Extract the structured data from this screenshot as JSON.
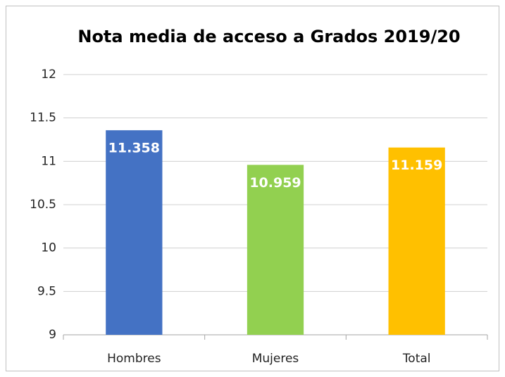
{
  "chart_data": {
    "type": "bar",
    "title": "Nota media de acceso a Grados 2019/20",
    "categories": [
      "Hombres",
      "Mujeres",
      "Total"
    ],
    "values": [
      11.358,
      10.959,
      11.159
    ],
    "colors": [
      "#4472c4",
      "#92d050",
      "#ffc000"
    ],
    "ylim": [
      9,
      12
    ],
    "yticks": [
      9,
      9.5,
      10,
      10.5,
      11,
      11.5,
      12
    ],
    "grid": true
  }
}
